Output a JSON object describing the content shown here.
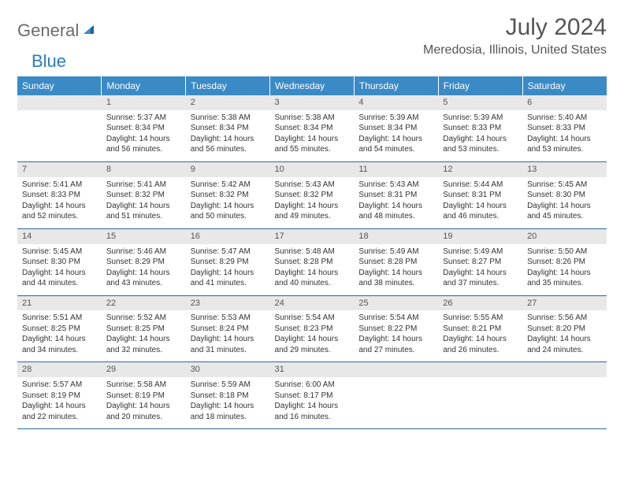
{
  "logo": {
    "text1": "General",
    "text2": "Blue"
  },
  "title": "July 2024",
  "location": "Meredosia, Illinois, United States",
  "dayHeaders": [
    "Sunday",
    "Monday",
    "Tuesday",
    "Wednesday",
    "Thursday",
    "Friday",
    "Saturday"
  ],
  "colors": {
    "headerBg": "#3a8ac6",
    "rowDivider": "#2b6aa0",
    "dayNumBg": "#e8e8e8",
    "logoGray": "#6a6a6a",
    "logoBlue": "#2b7bbf"
  },
  "weeks": [
    [
      null,
      {
        "n": "1",
        "sr": "5:37 AM",
        "ss": "8:34 PM",
        "dl": "14 hours and 56 minutes."
      },
      {
        "n": "2",
        "sr": "5:38 AM",
        "ss": "8:34 PM",
        "dl": "14 hours and 56 minutes."
      },
      {
        "n": "3",
        "sr": "5:38 AM",
        "ss": "8:34 PM",
        "dl": "14 hours and 55 minutes."
      },
      {
        "n": "4",
        "sr": "5:39 AM",
        "ss": "8:34 PM",
        "dl": "14 hours and 54 minutes."
      },
      {
        "n": "5",
        "sr": "5:39 AM",
        "ss": "8:33 PM",
        "dl": "14 hours and 53 minutes."
      },
      {
        "n": "6",
        "sr": "5:40 AM",
        "ss": "8:33 PM",
        "dl": "14 hours and 53 minutes."
      }
    ],
    [
      {
        "n": "7",
        "sr": "5:41 AM",
        "ss": "8:33 PM",
        "dl": "14 hours and 52 minutes."
      },
      {
        "n": "8",
        "sr": "5:41 AM",
        "ss": "8:32 PM",
        "dl": "14 hours and 51 minutes."
      },
      {
        "n": "9",
        "sr": "5:42 AM",
        "ss": "8:32 PM",
        "dl": "14 hours and 50 minutes."
      },
      {
        "n": "10",
        "sr": "5:43 AM",
        "ss": "8:32 PM",
        "dl": "14 hours and 49 minutes."
      },
      {
        "n": "11",
        "sr": "5:43 AM",
        "ss": "8:31 PM",
        "dl": "14 hours and 48 minutes."
      },
      {
        "n": "12",
        "sr": "5:44 AM",
        "ss": "8:31 PM",
        "dl": "14 hours and 46 minutes."
      },
      {
        "n": "13",
        "sr": "5:45 AM",
        "ss": "8:30 PM",
        "dl": "14 hours and 45 minutes."
      }
    ],
    [
      {
        "n": "14",
        "sr": "5:45 AM",
        "ss": "8:30 PM",
        "dl": "14 hours and 44 minutes."
      },
      {
        "n": "15",
        "sr": "5:46 AM",
        "ss": "8:29 PM",
        "dl": "14 hours and 43 minutes."
      },
      {
        "n": "16",
        "sr": "5:47 AM",
        "ss": "8:29 PM",
        "dl": "14 hours and 41 minutes."
      },
      {
        "n": "17",
        "sr": "5:48 AM",
        "ss": "8:28 PM",
        "dl": "14 hours and 40 minutes."
      },
      {
        "n": "18",
        "sr": "5:49 AM",
        "ss": "8:28 PM",
        "dl": "14 hours and 38 minutes."
      },
      {
        "n": "19",
        "sr": "5:49 AM",
        "ss": "8:27 PM",
        "dl": "14 hours and 37 minutes."
      },
      {
        "n": "20",
        "sr": "5:50 AM",
        "ss": "8:26 PM",
        "dl": "14 hours and 35 minutes."
      }
    ],
    [
      {
        "n": "21",
        "sr": "5:51 AM",
        "ss": "8:25 PM",
        "dl": "14 hours and 34 minutes."
      },
      {
        "n": "22",
        "sr": "5:52 AM",
        "ss": "8:25 PM",
        "dl": "14 hours and 32 minutes."
      },
      {
        "n": "23",
        "sr": "5:53 AM",
        "ss": "8:24 PM",
        "dl": "14 hours and 31 minutes."
      },
      {
        "n": "24",
        "sr": "5:54 AM",
        "ss": "8:23 PM",
        "dl": "14 hours and 29 minutes."
      },
      {
        "n": "25",
        "sr": "5:54 AM",
        "ss": "8:22 PM",
        "dl": "14 hours and 27 minutes."
      },
      {
        "n": "26",
        "sr": "5:55 AM",
        "ss": "8:21 PM",
        "dl": "14 hours and 26 minutes."
      },
      {
        "n": "27",
        "sr": "5:56 AM",
        "ss": "8:20 PM",
        "dl": "14 hours and 24 minutes."
      }
    ],
    [
      {
        "n": "28",
        "sr": "5:57 AM",
        "ss": "8:19 PM",
        "dl": "14 hours and 22 minutes."
      },
      {
        "n": "29",
        "sr": "5:58 AM",
        "ss": "8:19 PM",
        "dl": "14 hours and 20 minutes."
      },
      {
        "n": "30",
        "sr": "5:59 AM",
        "ss": "8:18 PM",
        "dl": "14 hours and 18 minutes."
      },
      {
        "n": "31",
        "sr": "6:00 AM",
        "ss": "8:17 PM",
        "dl": "14 hours and 16 minutes."
      },
      null,
      null,
      null
    ]
  ],
  "labels": {
    "sunrise": "Sunrise:",
    "sunset": "Sunset:",
    "daylight": "Daylight:"
  }
}
